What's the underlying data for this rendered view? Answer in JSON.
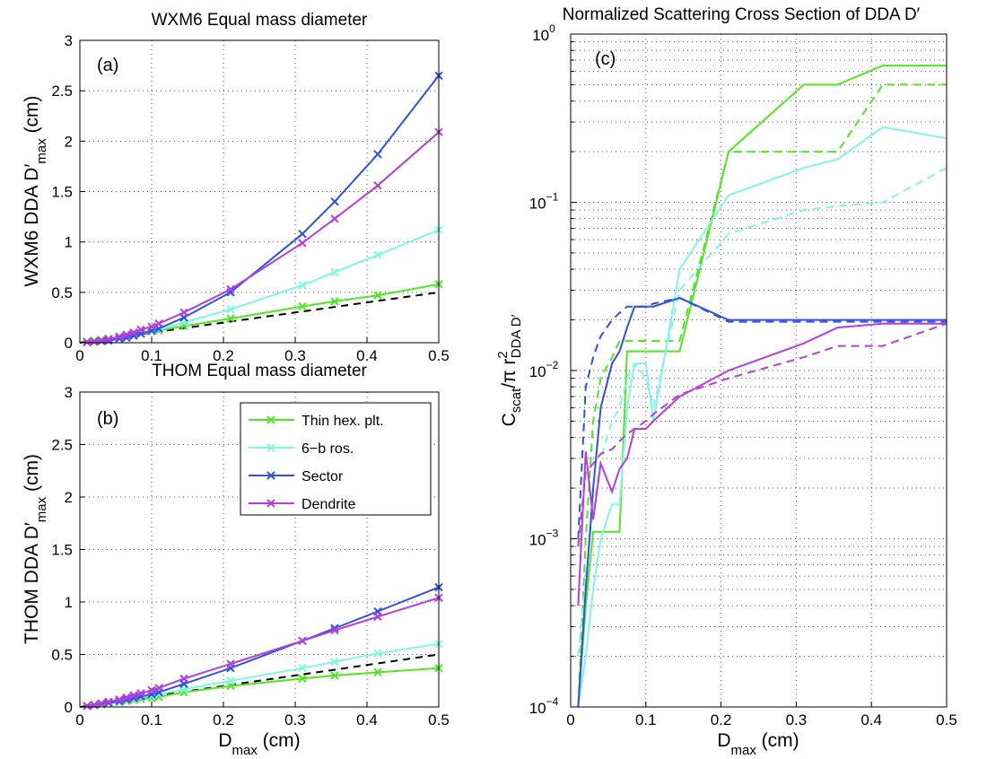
{
  "chart_data": [
    {
      "panel": "(a)",
      "type": "line",
      "title": "WXM6 Equal mass diameter",
      "xlabel": "D",
      "xlabel_sub": "max",
      "xlabel_unit": " (cm)",
      "ylabel": "WXM6 DDA D′",
      "ylabel_sub": "max",
      "ylabel_unit": " (cm)",
      "xlim": [
        0,
        0.5
      ],
      "ylim": [
        0,
        3
      ],
      "xticks": [
        "0",
        "0.1",
        "0.2",
        "0.3",
        "0.4",
        "0.5"
      ],
      "yticks": [
        "0",
        "0.5",
        "1",
        "1.5",
        "2",
        "2.5",
        "3"
      ],
      "grid": true,
      "reference_line": {
        "style": "dashed",
        "color": "#000000",
        "x": [
          0,
          0.5
        ],
        "y": [
          0,
          0.5
        ]
      },
      "series": [
        {
          "name": "Thin hex. plt.",
          "color": "#4de81f",
          "x": [
            0.01,
            0.02,
            0.03,
            0.04,
            0.055,
            0.065,
            0.075,
            0.085,
            0.1,
            0.11,
            0.145,
            0.21,
            0.31,
            0.355,
            0.415,
            0.5
          ],
          "y": [
            0.01,
            0.02,
            0.03,
            0.04,
            0.055,
            0.07,
            0.08,
            0.09,
            0.11,
            0.12,
            0.165,
            0.24,
            0.36,
            0.41,
            0.47,
            0.58
          ]
        },
        {
          "name": "6−b ros.",
          "color": "#7ff7e3",
          "x": [
            0.01,
            0.02,
            0.03,
            0.04,
            0.055,
            0.065,
            0.075,
            0.085,
            0.1,
            0.11,
            0.145,
            0.21,
            0.31,
            0.355,
            0.415,
            0.5
          ],
          "y": [
            0.005,
            0.012,
            0.02,
            0.03,
            0.045,
            0.06,
            0.07,
            0.09,
            0.11,
            0.13,
            0.2,
            0.33,
            0.57,
            0.7,
            0.87,
            1.12
          ]
        },
        {
          "name": "Sector",
          "color": "#2e50e6",
          "x": [
            0.01,
            0.02,
            0.03,
            0.04,
            0.055,
            0.065,
            0.075,
            0.085,
            0.1,
            0.11,
            0.145,
            0.21,
            0.31,
            0.355,
            0.415,
            0.5
          ],
          "y": [
            0.005,
            0.01,
            0.015,
            0.02,
            0.04,
            0.05,
            0.07,
            0.09,
            0.12,
            0.14,
            0.25,
            0.5,
            1.08,
            1.4,
            1.87,
            2.65
          ]
        },
        {
          "name": "Dendrite",
          "color": "#b53de0",
          "x": [
            0.01,
            0.02,
            0.03,
            0.04,
            0.055,
            0.065,
            0.075,
            0.085,
            0.1,
            0.11,
            0.145,
            0.21,
            0.31,
            0.355,
            0.415,
            0.5
          ],
          "y": [
            0.005,
            0.012,
            0.02,
            0.035,
            0.06,
            0.08,
            0.1,
            0.13,
            0.16,
            0.19,
            0.3,
            0.53,
            0.99,
            1.23,
            1.56,
            2.09
          ]
        }
      ]
    },
    {
      "panel": "(b)",
      "type": "line",
      "title": "THOM Equal mass diameter",
      "xlabel": "D",
      "xlabel_sub": "max",
      "xlabel_unit": " (cm)",
      "ylabel": "THOM DDA D′",
      "ylabel_sub": "max",
      "ylabel_unit": " (cm)",
      "xlim": [
        0,
        0.5
      ],
      "ylim": [
        0,
        3
      ],
      "xticks": [
        "0",
        "0.1",
        "0.2",
        "0.3",
        "0.4",
        "0.5"
      ],
      "yticks": [
        "0",
        "0.5",
        "1",
        "1.5",
        "2",
        "2.5",
        "3"
      ],
      "grid": true,
      "legend": "top-right",
      "reference_line": {
        "style": "dashed",
        "color": "#000000",
        "x": [
          0,
          0.5
        ],
        "y": [
          0,
          0.5
        ]
      },
      "series": [
        {
          "name": "Thin hex. plt.",
          "color": "#4de81f",
          "x": [
            0.01,
            0.02,
            0.03,
            0.04,
            0.055,
            0.065,
            0.075,
            0.085,
            0.1,
            0.11,
            0.145,
            0.21,
            0.31,
            0.355,
            0.415,
            0.5
          ],
          "y": [
            0.01,
            0.015,
            0.025,
            0.035,
            0.045,
            0.055,
            0.065,
            0.075,
            0.085,
            0.095,
            0.14,
            0.2,
            0.27,
            0.3,
            0.33,
            0.37
          ]
        },
        {
          "name": "6−b ros.",
          "color": "#7ff7e3",
          "x": [
            0.01,
            0.02,
            0.03,
            0.04,
            0.055,
            0.065,
            0.075,
            0.085,
            0.1,
            0.11,
            0.145,
            0.21,
            0.31,
            0.355,
            0.415,
            0.5
          ],
          "y": [
            0.01,
            0.02,
            0.03,
            0.04,
            0.05,
            0.065,
            0.075,
            0.09,
            0.105,
            0.12,
            0.17,
            0.25,
            0.37,
            0.43,
            0.51,
            0.6
          ]
        },
        {
          "name": "Sector",
          "color": "#2e50e6",
          "x": [
            0.01,
            0.02,
            0.03,
            0.04,
            0.055,
            0.065,
            0.075,
            0.085,
            0.1,
            0.11,
            0.145,
            0.21,
            0.31,
            0.355,
            0.415,
            0.5
          ],
          "y": [
            0.01,
            0.02,
            0.03,
            0.04,
            0.055,
            0.07,
            0.085,
            0.1,
            0.12,
            0.14,
            0.22,
            0.37,
            0.63,
            0.75,
            0.91,
            1.14
          ]
        },
        {
          "name": "Dendrite",
          "color": "#b53de0",
          "x": [
            0.01,
            0.02,
            0.03,
            0.04,
            0.055,
            0.065,
            0.075,
            0.085,
            0.1,
            0.11,
            0.145,
            0.21,
            0.31,
            0.355,
            0.415,
            0.5
          ],
          "y": [
            0.01,
            0.02,
            0.035,
            0.05,
            0.07,
            0.09,
            0.11,
            0.13,
            0.16,
            0.18,
            0.27,
            0.41,
            0.63,
            0.73,
            0.86,
            1.04
          ]
        }
      ]
    },
    {
      "panel": "(c)",
      "type": "line",
      "title": "Normalized Scattering Cross Section of DDA D′",
      "xlabel": "D",
      "xlabel_sub": "max",
      "xlabel_unit": " (cm)",
      "ylabel_parts": [
        "C",
        "scat",
        "/π r",
        "2",
        "DDA D′"
      ],
      "xlim": [
        0,
        0.5
      ],
      "ylim": [
        0.0001,
        1
      ],
      "yscale": "log",
      "xticks": [
        "0",
        "0.1",
        "0.2",
        "0.3",
        "0.4",
        "0.5"
      ],
      "ytick_bases": [
        "10",
        "10",
        "10",
        "10",
        "10"
      ],
      "ytick_exps": [
        "−4",
        "−3",
        "−2",
        "−1",
        "0"
      ],
      "grid": true,
      "series": [
        {
          "name": "Thin hex. plt.",
          "color": "#4de81f",
          "style": "solid",
          "x": [
            0.01,
            0.02,
            0.03,
            0.04,
            0.055,
            0.065,
            0.075,
            0.085,
            0.1,
            0.11,
            0.145,
            0.21,
            0.31,
            0.355,
            0.415,
            0.5
          ],
          "y": [
            5e-05,
            0.0004,
            0.0011,
            0.0011,
            0.0011,
            0.0011,
            0.013,
            0.013,
            0.013,
            0.013,
            0.013,
            0.2,
            0.5,
            0.5,
            0.65,
            0.65
          ]
        },
        {
          "name": "Thin hex. plt. (dashed)",
          "color": "#4de81f",
          "style": "dashed",
          "x": [
            0.01,
            0.02,
            0.03,
            0.04,
            0.055,
            0.065,
            0.075,
            0.085,
            0.1,
            0.11,
            0.145,
            0.21,
            0.31,
            0.355,
            0.415,
            0.5
          ],
          "y": [
            8e-05,
            0.001,
            0.005,
            0.009,
            0.012,
            0.015,
            0.015,
            0.015,
            0.015,
            0.015,
            0.015,
            0.2,
            0.2,
            0.2,
            0.5,
            0.5
          ]
        },
        {
          "name": "6−b ros.",
          "color": "#7ff7e3",
          "style": "solid",
          "x": [
            0.01,
            0.02,
            0.03,
            0.04,
            0.055,
            0.065,
            0.075,
            0.085,
            0.1,
            0.11,
            0.145,
            0.21,
            0.31,
            0.355,
            0.415,
            0.5
          ],
          "y": [
            6e-05,
            0.0002,
            0.0005,
            0.001,
            0.0016,
            0.0016,
            0.006,
            0.011,
            0.011,
            0.005,
            0.04,
            0.11,
            0.16,
            0.18,
            0.28,
            0.24
          ]
        },
        {
          "name": "6−b ros. (dashed)",
          "color": "#7ff7e3",
          "style": "dashed",
          "x": [
            0.01,
            0.02,
            0.03,
            0.04,
            0.055,
            0.065,
            0.075,
            0.085,
            0.1,
            0.11,
            0.145,
            0.21,
            0.31,
            0.355,
            0.415,
            0.5
          ],
          "y": [
            0.0002,
            0.0006,
            0.0015,
            0.003,
            0.005,
            0.006,
            0.009,
            0.011,
            0.009,
            0.006,
            0.03,
            0.065,
            0.09,
            0.095,
            0.1,
            0.16
          ]
        },
        {
          "name": "Sector",
          "color": "#2e50e6",
          "style": "solid",
          "x": [
            0.01,
            0.02,
            0.03,
            0.04,
            0.055,
            0.065,
            0.075,
            0.085,
            0.1,
            0.11,
            0.145,
            0.21,
            0.31,
            0.355,
            0.415,
            0.5
          ],
          "y": [
            5e-05,
            0.0005,
            0.002,
            0.006,
            0.011,
            0.013,
            0.018,
            0.024,
            0.024,
            0.024,
            0.027,
            0.02,
            0.02,
            0.02,
            0.02,
            0.02
          ]
        },
        {
          "name": "Sector (dashed)",
          "color": "#2e50e6",
          "style": "dashed",
          "x": [
            0.01,
            0.02,
            0.03,
            0.04,
            0.055,
            0.065,
            0.075,
            0.085,
            0.1,
            0.11,
            0.145,
            0.21,
            0.31,
            0.355,
            0.415,
            0.5
          ],
          "y": [
            0.001,
            0.008,
            0.012,
            0.016,
            0.02,
            0.022,
            0.024,
            0.024,
            0.024,
            0.025,
            0.027,
            0.0195,
            0.0195,
            0.0195,
            0.0195,
            0.0195
          ]
        },
        {
          "name": "Dendrite",
          "color": "#b53de0",
          "style": "solid",
          "x": [
            0.01,
            0.02,
            0.03,
            0.04,
            0.055,
            0.065,
            0.075,
            0.085,
            0.1,
            0.11,
            0.145,
            0.21,
            0.31,
            0.355,
            0.415,
            0.5
          ],
          "y": [
            0.0004,
            0.0033,
            0.0013,
            0.0028,
            0.0019,
            0.0026,
            0.003,
            0.0045,
            0.0045,
            0.005,
            0.007,
            0.01,
            0.0145,
            0.018,
            0.019,
            0.019
          ]
        },
        {
          "name": "Dendrite (dashed)",
          "color": "#b53de0",
          "style": "dashed",
          "x": [
            0.01,
            0.02,
            0.03,
            0.04,
            0.055,
            0.065,
            0.075,
            0.085,
            0.1,
            0.11,
            0.145,
            0.21,
            0.31,
            0.355,
            0.415,
            0.5
          ],
          "y": [
            0.0009,
            0.0025,
            0.0028,
            0.0032,
            0.0034,
            0.0038,
            0.0042,
            0.0045,
            0.005,
            0.0055,
            0.0072,
            0.009,
            0.012,
            0.014,
            0.014,
            0.019
          ]
        }
      ]
    }
  ],
  "legend": {
    "entries": [
      "Thin hex. plt.",
      "6−b ros.",
      "Sector",
      "Dendrite"
    ],
    "colors": [
      "#4de81f",
      "#7ff7e3",
      "#2e50e6",
      "#b53de0"
    ],
    "marker": "x"
  }
}
